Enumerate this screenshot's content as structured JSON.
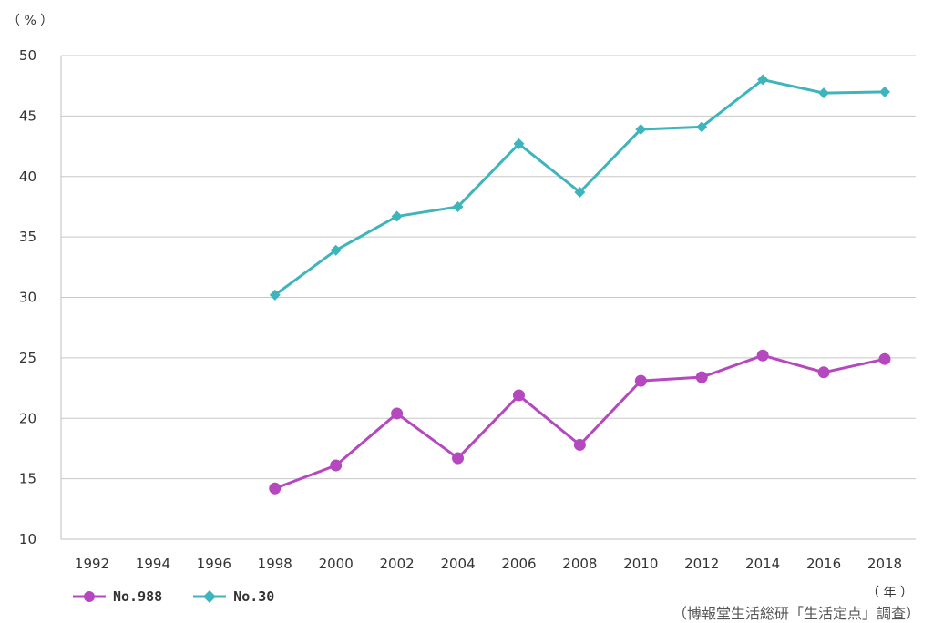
{
  "chart_data": {
    "type": "line",
    "y_unit": "（ % ）",
    "x_unit": "（ 年 ）",
    "source": "（博報堂生活総研「生活定点」調査）",
    "ylim": [
      10,
      50
    ],
    "yticks": [
      10,
      15,
      20,
      25,
      30,
      35,
      40,
      45,
      50
    ],
    "categories": [
      "1992",
      "1994",
      "1996",
      "1998",
      "2000",
      "2002",
      "2004",
      "2006",
      "2008",
      "2010",
      "2012",
      "2014",
      "2016",
      "2018"
    ],
    "grid": "horizontal",
    "legend_position": "bottom-left",
    "series": [
      {
        "name": "No.988",
        "color": "#b548bf",
        "marker": "circle",
        "values": [
          null,
          null,
          null,
          14.2,
          16.1,
          20.4,
          16.7,
          21.9,
          17.8,
          23.1,
          23.4,
          25.2,
          23.8,
          24.9
        ]
      },
      {
        "name": "No.30",
        "color": "#3eb4bd",
        "marker": "diamond",
        "values": [
          null,
          null,
          null,
          30.2,
          33.9,
          36.7,
          37.5,
          42.7,
          38.7,
          43.9,
          44.1,
          48.0,
          46.9,
          47.0
        ]
      }
    ]
  }
}
